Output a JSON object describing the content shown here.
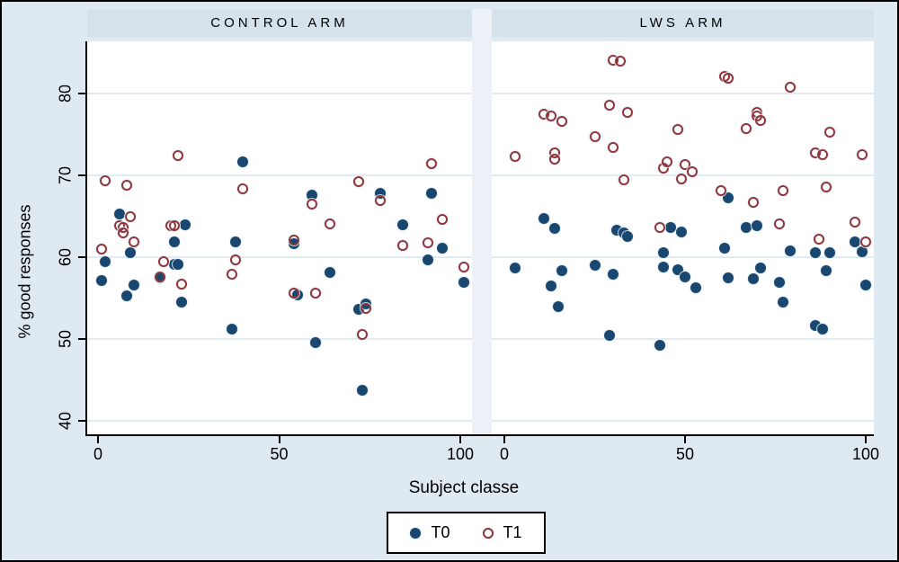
{
  "figure": {
    "x_axis_label": "Subject classe",
    "y_axis_label": "% good responses",
    "legend": {
      "t0_label": "T0",
      "t1_label": "T1"
    }
  },
  "chart_data": {
    "type": "scatter",
    "title": "",
    "xlabel": "Subject classe",
    "ylabel": "% good responses",
    "xticks": [
      0,
      50,
      100
    ],
    "yticks": [
      40,
      50,
      60,
      70,
      80
    ],
    "xlim": [
      -3,
      103
    ],
    "ylim": [
      38.3,
      86.3
    ],
    "grid": true,
    "legend_position": "bottom-center",
    "legend_entries": [
      "T0",
      "T1"
    ],
    "colors": {
      "T0": "#1a476f",
      "T1": "#90353b",
      "background": "#dfe9f1",
      "panel_header": "#d5e2ec",
      "gridline": "#e0ebf3",
      "plot_background": "#ffffff"
    },
    "panels": [
      {
        "title": "CONTROL ARM",
        "series": [
          {
            "name": "T0",
            "marker": "filled_circle",
            "points": [
              [
                1,
                57.1
              ],
              [
                2,
                59.5
              ],
              [
                6,
                65.3
              ],
              [
                8,
                55.3
              ],
              [
                9,
                60.5
              ],
              [
                10,
                56.6
              ],
              [
                17,
                57.5
              ],
              [
                21,
                61.9
              ],
              [
                21,
                59.1
              ],
              [
                22,
                59.1
              ],
              [
                23,
                54.5
              ],
              [
                24,
                64.0
              ],
              [
                37,
                51.2
              ],
              [
                38,
                61.9
              ],
              [
                40,
                71.7
              ],
              [
                54,
                61.7
              ],
              [
                55,
                55.4
              ],
              [
                59,
                67.6
              ],
              [
                60,
                49.6
              ],
              [
                64,
                58.1
              ],
              [
                72,
                53.6
              ],
              [
                73,
                43.7
              ],
              [
                74,
                54.3
              ],
              [
                78,
                67.8
              ],
              [
                84,
                64.0
              ],
              [
                91,
                59.7
              ],
              [
                92,
                67.8
              ],
              [
                95,
                61.1
              ],
              [
                101,
                56.9
              ]
            ]
          },
          {
            "name": "T1",
            "marker": "open_circle",
            "points": [
              [
                1,
                61.0
              ],
              [
                2,
                69.3
              ],
              [
                6,
                63.9
              ],
              [
                7,
                63.6
              ],
              [
                7,
                63.0
              ],
              [
                8,
                68.8
              ],
              [
                9,
                65.0
              ],
              [
                10,
                61.9
              ],
              [
                17,
                57.6
              ],
              [
                18,
                59.4
              ],
              [
                20,
                63.9
              ],
              [
                21,
                63.8
              ],
              [
                22,
                72.4
              ],
              [
                23,
                56.7
              ],
              [
                37,
                57.9
              ],
              [
                38,
                59.7
              ],
              [
                40,
                68.4
              ],
              [
                54,
                62.1
              ],
              [
                54,
                55.6
              ],
              [
                59,
                66.5
              ],
              [
                60,
                55.6
              ],
              [
                64,
                64.1
              ],
              [
                72,
                69.2
              ],
              [
                73,
                50.5
              ],
              [
                74,
                53.7
              ],
              [
                78,
                66.9
              ],
              [
                84,
                61.4
              ],
              [
                91,
                61.8
              ],
              [
                92,
                71.4
              ],
              [
                95,
                64.6
              ],
              [
                101,
                58.8
              ]
            ]
          }
        ]
      },
      {
        "title": "LWS ARM",
        "series": [
          {
            "name": "T0",
            "marker": "filled_circle",
            "points": [
              [
                3,
                58.7
              ],
              [
                11,
                64.7
              ],
              [
                13,
                56.5
              ],
              [
                14,
                63.5
              ],
              [
                15,
                54.0
              ],
              [
                16,
                58.4
              ],
              [
                25,
                59.0
              ],
              [
                29,
                50.4
              ],
              [
                30,
                57.9
              ],
              [
                31,
                63.3
              ],
              [
                33,
                63.0
              ],
              [
                34,
                62.5
              ],
              [
                43,
                49.2
              ],
              [
                44,
                60.5
              ],
              [
                44,
                58.8
              ],
              [
                46,
                63.6
              ],
              [
                48,
                58.5
              ],
              [
                49,
                63.1
              ],
              [
                50,
                57.6
              ],
              [
                53,
                56.3
              ],
              [
                61,
                61.1
              ],
              [
                62,
                67.3
              ],
              [
                62,
                57.5
              ],
              [
                67,
                63.6
              ],
              [
                69,
                57.4
              ],
              [
                70,
                63.8
              ],
              [
                71,
                58.7
              ],
              [
                76,
                56.9
              ],
              [
                77,
                54.5
              ],
              [
                79,
                60.8
              ],
              [
                86,
                60.5
              ],
              [
                86,
                51.7
              ],
              [
                88,
                51.2
              ],
              [
                89,
                58.4
              ],
              [
                90,
                60.6
              ],
              [
                97,
                61.9
              ],
              [
                99,
                60.7
              ],
              [
                100,
                56.6
              ]
            ]
          },
          {
            "name": "T1",
            "marker": "open_circle",
            "points": [
              [
                3,
                72.3
              ],
              [
                11,
                77.5
              ],
              [
                13,
                77.3
              ],
              [
                14,
                72.7
              ],
              [
                14,
                72.0
              ],
              [
                16,
                76.6
              ],
              [
                25,
                74.7
              ],
              [
                29,
                78.6
              ],
              [
                30,
                73.4
              ],
              [
                30,
                84.1
              ],
              [
                32,
                84.0
              ],
              [
                33,
                69.4
              ],
              [
                34,
                77.7
              ],
              [
                43,
                63.6
              ],
              [
                44,
                70.9
              ],
              [
                45,
                71.6
              ],
              [
                48,
                75.6
              ],
              [
                49,
                69.6
              ],
              [
                50,
                71.3
              ],
              [
                52,
                70.4
              ],
              [
                60,
                68.1
              ],
              [
                61,
                82.1
              ],
              [
                62,
                81.9
              ],
              [
                67,
                75.7
              ],
              [
                69,
                66.7
              ],
              [
                70,
                77.7
              ],
              [
                70,
                77.3
              ],
              [
                71,
                76.7
              ],
              [
                76,
                64.1
              ],
              [
                77,
                68.1
              ],
              [
                79,
                80.8
              ],
              [
                86,
                72.7
              ],
              [
                87,
                62.2
              ],
              [
                88,
                72.5
              ],
              [
                89,
                68.6
              ],
              [
                90,
                75.3
              ],
              [
                97,
                64.3
              ],
              [
                99,
                72.5
              ],
              [
                100,
                61.9
              ]
            ]
          }
        ]
      }
    ]
  }
}
